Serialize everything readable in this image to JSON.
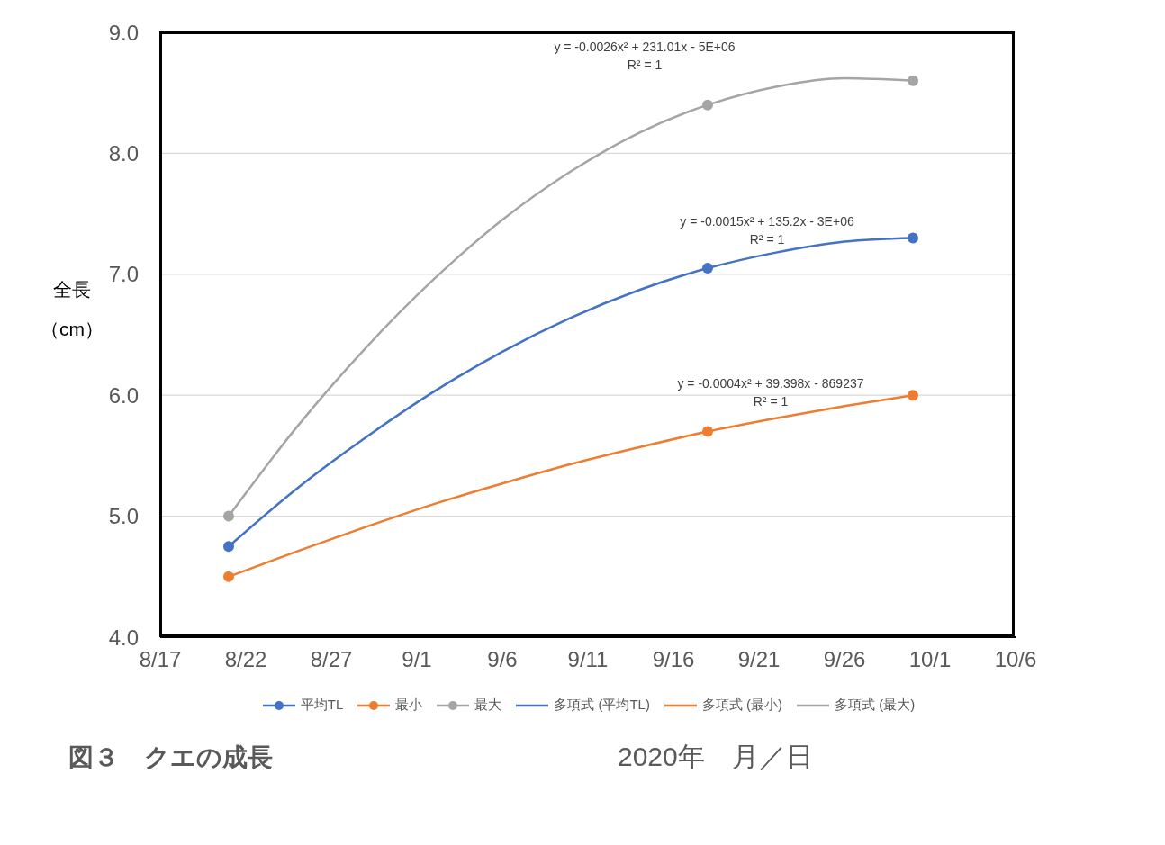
{
  "chart_data": {
    "type": "scatter",
    "title": "図３　クエの成長",
    "xlabel": "2020年　月／日",
    "ylabel": "全長（cm）",
    "xlim": [
      "2020-08-17",
      "2020-10-06"
    ],
    "xticks": [
      {
        "value": "2020-08-17",
        "label": "8/17"
      },
      {
        "value": "2020-08-22",
        "label": "8/22"
      },
      {
        "value": "2020-08-27",
        "label": "8/27"
      },
      {
        "value": "2020-09-01",
        "label": "9/1"
      },
      {
        "value": "2020-09-06",
        "label": "9/6"
      },
      {
        "value": "2020-09-11",
        "label": "9/11"
      },
      {
        "value": "2020-09-16",
        "label": "9/16"
      },
      {
        "value": "2020-09-21",
        "label": "9/21"
      },
      {
        "value": "2020-09-26",
        "label": "9/26"
      },
      {
        "value": "2020-10-01",
        "label": "10/1"
      },
      {
        "value": "2020-10-06",
        "label": "10/6"
      }
    ],
    "ylim": [
      4,
      9
    ],
    "yticks": [
      {
        "value": 4,
        "label": "4.0"
      },
      {
        "value": 5,
        "label": "5.0"
      },
      {
        "value": 6,
        "label": "6.0"
      },
      {
        "value": 7,
        "label": "7.0"
      },
      {
        "value": 8,
        "label": "8.0"
      },
      {
        "value": 9,
        "label": "9.0"
      }
    ],
    "grid": "y",
    "legend": "bottom",
    "marker": "circle",
    "series": [
      {
        "name": "平均TL",
        "color": "#4472c4",
        "x": [
          "2020-08-21",
          "2020-09-18",
          "2020-09-30"
        ],
        "values": [
          4.75,
          7.05,
          7.3
        ]
      },
      {
        "name": "最小",
        "color": "#ed7d31",
        "x": [
          "2020-08-21",
          "2020-09-18",
          "2020-09-30"
        ],
        "values": [
          4.5,
          5.7,
          6.0
        ]
      },
      {
        "name": "最大",
        "color": "#a5a5a5",
        "x": [
          "2020-08-21",
          "2020-09-18",
          "2020-09-30"
        ],
        "values": [
          5.0,
          8.4,
          8.6
        ]
      },
      {
        "name": "多項式 (平均TL)",
        "type": "line",
        "marker": "none",
        "color": "#4472c4",
        "x": [
          "2020-08-21",
          "2020-08-25",
          "2020-08-29",
          "2020-09-02",
          "2020-09-06",
          "2020-09-10",
          "2020-09-14",
          "2020-09-18",
          "2020-09-22",
          "2020-09-26",
          "2020-09-30"
        ],
        "values": [
          4.75,
          5.23,
          5.65,
          6.03,
          6.36,
          6.64,
          6.87,
          7.05,
          7.18,
          7.27,
          7.3
        ]
      },
      {
        "name": "多項式 (最小)",
        "type": "line",
        "marker": "none",
        "color": "#ed7d31",
        "x": [
          "2020-08-21",
          "2020-08-25",
          "2020-08-29",
          "2020-09-02",
          "2020-09-06",
          "2020-09-10",
          "2020-09-14",
          "2020-09-18",
          "2020-09-22",
          "2020-09-26",
          "2020-09-30"
        ],
        "values": [
          4.5,
          4.71,
          4.91,
          5.1,
          5.27,
          5.43,
          5.57,
          5.7,
          5.81,
          5.91,
          6.0
        ]
      },
      {
        "name": "多項式 (最大)",
        "type": "line",
        "marker": "none",
        "color": "#a5a5a5",
        "x": [
          "2020-08-21",
          "2020-08-25",
          "2020-08-29",
          "2020-09-02",
          "2020-09-06",
          "2020-09-10",
          "2020-09-14",
          "2020-09-18",
          "2020-09-22",
          "2020-09-26",
          "2020-09-30"
        ],
        "values": [
          5.0,
          5.74,
          6.39,
          6.96,
          7.45,
          7.85,
          8.17,
          8.4,
          8.55,
          8.62,
          8.6
        ]
      }
    ],
    "annotations": [
      "y = -0.0026x² + 231.01x - 5E+06",
      "R² = 1",
      "y = -0.0015x² + 135.2x - 3E+06",
      "R² = 1",
      "y = -0.0004x² + 39.398x - 869237",
      "R² = 1"
    ]
  }
}
